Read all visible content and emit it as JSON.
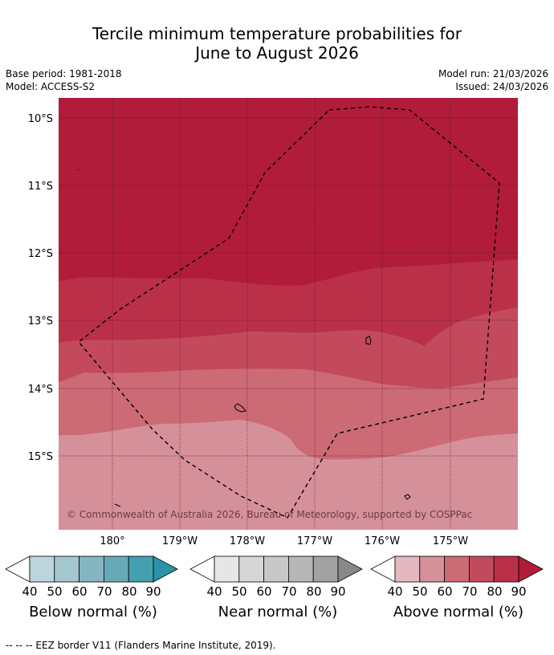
{
  "title_line1": "Tercile minimum temperature probabilities for",
  "title_line2": "June to August 2026",
  "meta": {
    "base_period": "Base period: 1981-2018",
    "model": "Model: ACCESS-S2",
    "model_run": "Model run: 21/03/2026",
    "issued": "Issued: 24/03/2026"
  },
  "map": {
    "lat_labels": [
      "10°S",
      "11°S",
      "12°S",
      "13°S",
      "14°S",
      "15°S"
    ],
    "lon_labels": [
      "180°",
      "179°W",
      "178°W",
      "177°W",
      "176°W",
      "175°W"
    ],
    "copyright": "© Commonwealth of Australia 2026, Bureau of Meteorology, supported by COSPPac",
    "colors": {
      "above_90": "#b11c3a",
      "above_80": "#ba3049",
      "above_70": "#c24a5c",
      "above_60": "#cc6a75",
      "above_50": "#d5919a"
    }
  },
  "legends": {
    "below": {
      "title": "Below normal (%)",
      "ticks": [
        "40",
        "50",
        "60",
        "70",
        "80",
        "90"
      ],
      "colors": [
        "#ffffff",
        "#bdd5dd",
        "#a4c6cf",
        "#86b5c2",
        "#69a9b6",
        "#44a0b0",
        "#2a93a7"
      ]
    },
    "near": {
      "title": "Near normal (%)",
      "ticks": [
        "40",
        "50",
        "60",
        "70",
        "80",
        "90"
      ],
      "colors": [
        "#ffffff",
        "#e6e6e6",
        "#d6d6d6",
        "#c8c8c8",
        "#b6b6b6",
        "#a2a2a2",
        "#888888"
      ]
    },
    "above": {
      "title": "Above normal (%)",
      "ticks": [
        "40",
        "50",
        "60",
        "70",
        "80",
        "90"
      ],
      "colors": [
        "#ffffff",
        "#e4b8bf",
        "#d5919a",
        "#cc6a75",
        "#c24a5c",
        "#ba3049",
        "#b11c3a"
      ]
    }
  },
  "footer": "--  --  -- EEZ border V11 (Flanders Marine Institute, 2019)."
}
